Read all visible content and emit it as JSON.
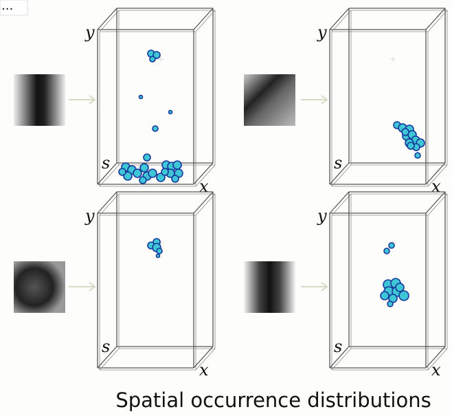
{
  "ellipsis": "...",
  "panels": [
    {
      "y_label": "y",
      "s_label": "s",
      "x_label": "x"
    },
    {
      "y_label": "y",
      "s_label": "s",
      "x_label": "x"
    },
    {
      "y_label": "y",
      "s_label": "s",
      "x_label": "x"
    },
    {
      "y_label": "y",
      "s_label": "s",
      "x_label": "x"
    }
  ],
  "caption": "Spatial occurrence distributions"
}
